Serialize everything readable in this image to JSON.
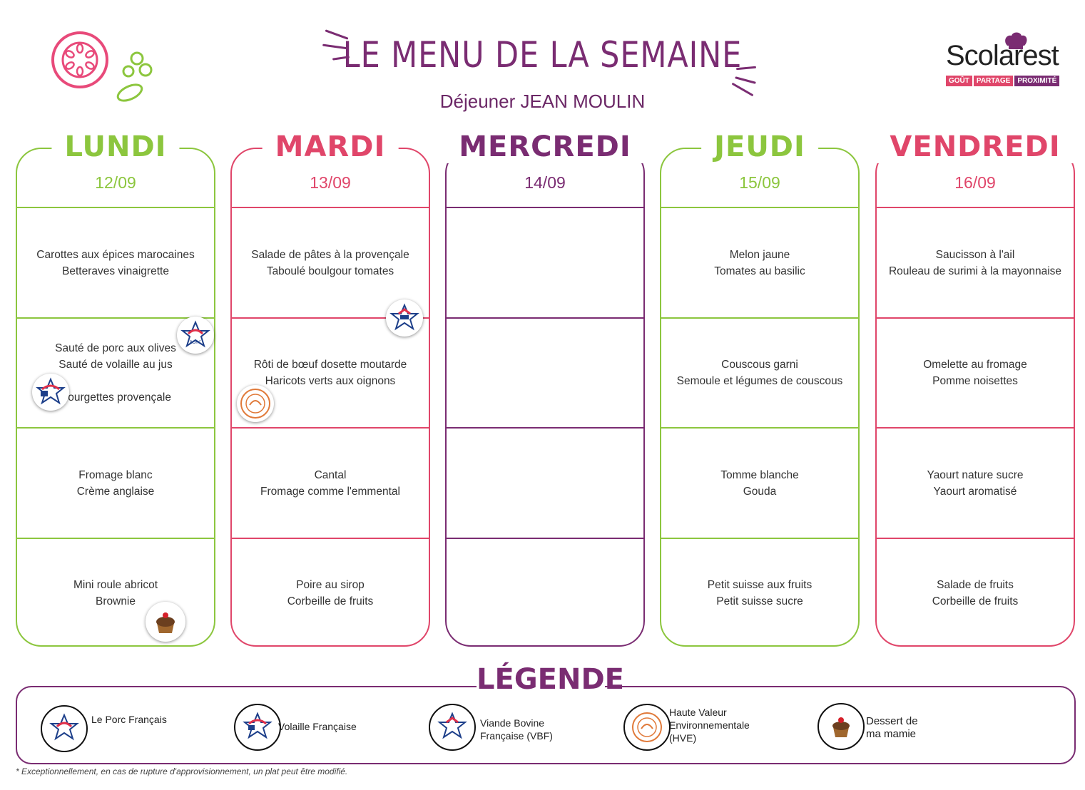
{
  "header": {
    "title": "LE MENU DE LA SEMAINE",
    "subtitle": "Déjeuner JEAN MOULIN"
  },
  "brand": {
    "name": "Scolarest",
    "tagline": [
      "GOÛT",
      "PARTAGE",
      "PROXIMITÉ"
    ]
  },
  "colors": {
    "green": "#8cc63e",
    "pink": "#e0466a",
    "purple": "#7a2c72"
  },
  "days": [
    {
      "name": "LUNDI",
      "date": "12/09",
      "color": "#8cc63e",
      "sections": [
        [
          "Carottes aux épices marocaines",
          "Betteraves vinaigrette"
        ],
        [
          "Sauté de porc aux olives",
          "Sauté de volaille au jus",
          "",
          "Courgettes provençale"
        ],
        [
          "Fromage blanc",
          "Crème anglaise"
        ],
        [
          "Mini roule abricot",
          "Brownie"
        ]
      ]
    },
    {
      "name": "MARDI",
      "date": "13/09",
      "color": "#e0466a",
      "sections": [
        [
          "Salade de pâtes à la provençale",
          "Taboulé boulgour tomates"
        ],
        [
          "Rôti de bœuf dosette moutarde",
          "Haricots verts aux oignons"
        ],
        [
          "Cantal",
          "Fromage comme l'emmental"
        ],
        [
          "Poire au sirop",
          "Corbeille de fruits"
        ]
      ]
    },
    {
      "name": "MERCREDI",
      "date": "14/09",
      "color": "#7a2c72",
      "sections": [
        [],
        [],
        [],
        []
      ]
    },
    {
      "name": "JEUDI",
      "date": "15/09",
      "color": "#8cc63e",
      "sections": [
        [
          "Melon jaune",
          "Tomates au basilic"
        ],
        [
          "Couscous garni",
          "Semoule et légumes de couscous"
        ],
        [
          "Tomme blanche",
          "Gouda"
        ],
        [
          "Petit suisse aux fruits",
          "Petit suisse sucre"
        ]
      ]
    },
    {
      "name": "VENDREDI",
      "date": "16/09",
      "color": "#e0466a",
      "sections": [
        [
          "Saucisson à l'ail",
          "Rouleau de surimi à la mayonnaise"
        ],
        [
          "Omelette au fromage",
          "Pomme noisettes"
        ],
        [
          "Yaourt nature sucre",
          "Yaourt aromatisé"
        ],
        [
          "Salade de fruits",
          "Corbeille de fruits"
        ]
      ]
    }
  ],
  "legend": {
    "title": "LÉGENDE",
    "items": [
      {
        "label": "Le Porc Français",
        "icon": "le-porc-francais-logo"
      },
      {
        "label": "Volaille Française",
        "icon": "volaille-francaise-logo"
      },
      {
        "label": "Viande Bovine Française (VBF)",
        "icon": "viande-bovine-francaise-logo"
      },
      {
        "label": "Haute Valeur Environnementale (HVE)",
        "icon": "hve-logo"
      },
      {
        "label": "Dessert de ma mamie",
        "icon": "cupcake-icon"
      }
    ]
  },
  "footnote": "* Exceptionnellement, en cas de rupture d'approvisionnement, un plat peut être modifié."
}
